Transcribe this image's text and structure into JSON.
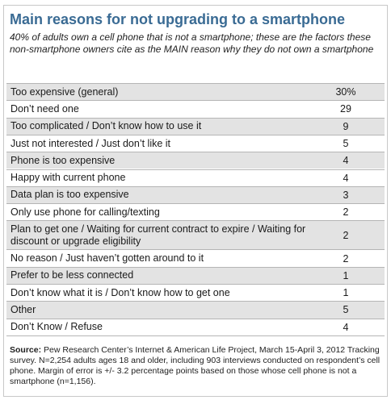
{
  "title": "Main reasons for not upgrading to a smartphone",
  "subtitle": "40% of adults own a cell phone that is not a smartphone; these are the factors these non-smartphone owners cite as the MAIN reason why they do not own a smartphone",
  "source_label": "Source:",
  "source_text": "Pew Research Center’s Internet & American Life Project, March 15-April 3, 2012 Tracking survey. N=2,254 adults ages 18 and older, including 903 interviews conducted on respondent’s cell phone. Margin of error is +/- 3.2 percentage points based on those whose cell phone is not a smartphone (n=1,156).",
  "chart_data": {
    "type": "table",
    "title": "Main reasons for not upgrading to a smartphone",
    "columns": [
      "Reason",
      "Percent"
    ],
    "rows": [
      {
        "label": "Too expensive (general)",
        "value": "30%"
      },
      {
        "label": "Don’t need one",
        "value": "29"
      },
      {
        "label": "Too complicated / Don’t know how to use it",
        "value": "9"
      },
      {
        "label": "Just not interested / Just don’t like it",
        "value": "5"
      },
      {
        "label": "Phone is too expensive",
        "value": "4"
      },
      {
        "label": "Happy with current phone",
        "value": "4"
      },
      {
        "label": "Data plan is too expensive",
        "value": "3"
      },
      {
        "label": "Only use phone for calling/texting",
        "value": "2"
      },
      {
        "label": "Plan to get one / Waiting for current contract to expire / Waiting for discount or upgrade eligibility",
        "value": "2"
      },
      {
        "label": "No reason / Just haven’t gotten around to it",
        "value": "2"
      },
      {
        "label": "Prefer to be less connected",
        "value": "1"
      },
      {
        "label": "Don’t know what it is / Don’t know how to get one",
        "value": "1"
      },
      {
        "label": "Other",
        "value": "5"
      },
      {
        "label": "Don’t Know / Refuse",
        "value": "4"
      }
    ]
  }
}
